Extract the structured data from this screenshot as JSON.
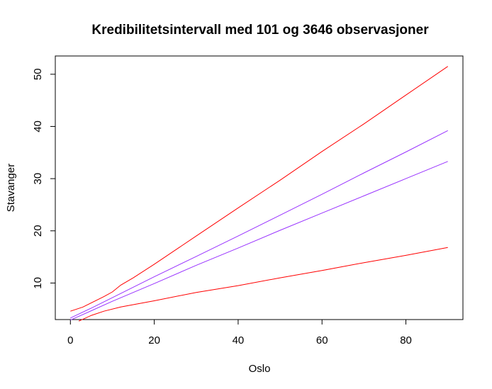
{
  "chart_data": {
    "type": "line",
    "title": "Kredibilitetsintervall med 101 og 3646 observasjoner",
    "xlabel": "Oslo",
    "ylabel": "Stavanger",
    "xlim": [
      -3.6,
      93.6
    ],
    "ylim": [
      3.0,
      53.5
    ],
    "xticks": [
      0,
      20,
      40,
      60,
      80
    ],
    "yticks": [
      10,
      20,
      30,
      40,
      50
    ],
    "grid": false,
    "legend": "none",
    "series": [
      {
        "color": "#ff0000",
        "x": [
          0,
          3,
          8,
          10,
          12,
          15,
          20,
          30,
          40,
          50,
          60,
          70,
          80,
          90
        ],
        "y": [
          4.6,
          5.4,
          7.4,
          8.3,
          9.6,
          11.0,
          13.6,
          19.0,
          24.4,
          29.7,
          35.2,
          40.5,
          46.0,
          51.5
        ]
      },
      {
        "color": "#9933ff",
        "x": [
          0,
          5,
          10,
          20,
          30,
          40,
          50,
          60,
          70,
          80,
          90
        ],
        "y": [
          3.3,
          5.2,
          7.2,
          11.2,
          15.1,
          19.0,
          23.0,
          27.0,
          31.1,
          35.1,
          39.2
        ]
      },
      {
        "color": "#9933ff",
        "x": [
          0,
          5,
          10,
          20,
          30,
          40,
          50,
          60,
          70,
          80,
          90
        ],
        "y": [
          2.9,
          4.7,
          6.5,
          9.9,
          13.4,
          16.7,
          20.1,
          23.4,
          26.7,
          30.0,
          33.3
        ]
      },
      {
        "color": "#ff0000",
        "x": [
          2,
          5,
          8,
          12,
          16,
          20,
          30,
          40,
          50,
          60,
          70,
          80,
          90
        ],
        "y": [
          2.7,
          3.8,
          4.6,
          5.4,
          6.0,
          6.6,
          8.2,
          9.5,
          11.0,
          12.4,
          13.9,
          15.3,
          16.8
        ]
      }
    ]
  }
}
